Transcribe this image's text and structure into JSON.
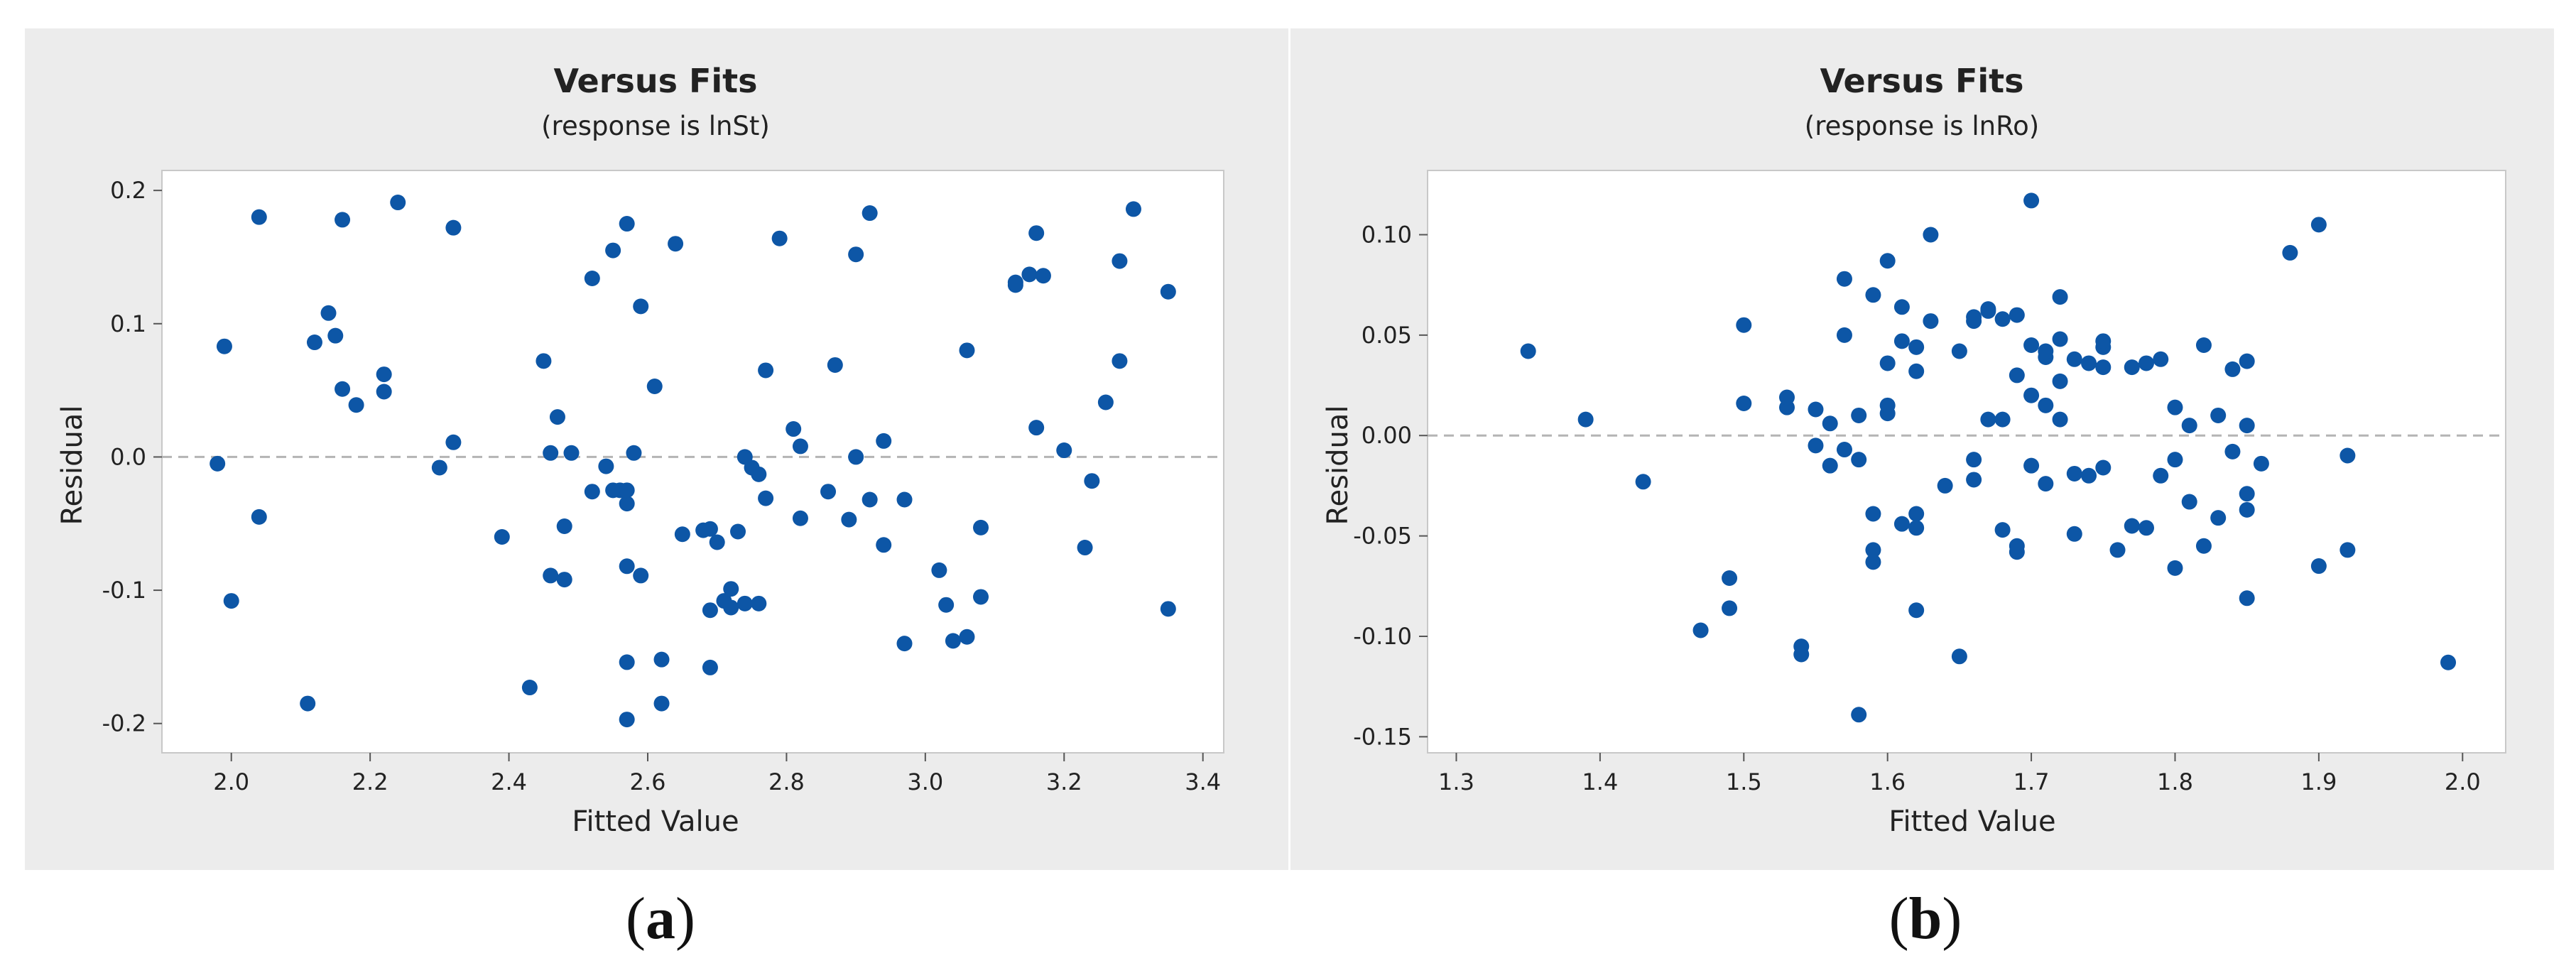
{
  "captions": {
    "a_letter": "a",
    "b_letter": "b"
  },
  "colors": {
    "point": "#0d56a6",
    "reference_line": "#b4b4b4",
    "panel_bg": "#ececec",
    "plot_bg": "#ffffff"
  },
  "chart_data": [
    {
      "type": "scatter",
      "title": "Versus Fits",
      "subtitle": "(response is lnSt)",
      "xlabel": "Fitted Value",
      "ylabel": "Residual",
      "xlim": [
        1.9,
        3.43
      ],
      "ylim": [
        -0.222,
        0.215
      ],
      "xticks": [
        2.0,
        2.2,
        2.4,
        2.6,
        2.8,
        3.0,
        3.2,
        3.4
      ],
      "xtick_labels": [
        "2.0",
        "2.2",
        "2.4",
        "2.6",
        "2.8",
        "3.0",
        "3.2",
        "3.4"
      ],
      "yticks": [
        -0.2,
        -0.1,
        0.0,
        0.1,
        0.2
      ],
      "ytick_labels": [
        "-0.2",
        "-0.1",
        "0.0",
        "0.1",
        "0.2"
      ],
      "reference_line_y": 0,
      "grid": false,
      "points": [
        [
          1.98,
          -0.005
        ],
        [
          1.99,
          0.083
        ],
        [
          2.0,
          -0.108
        ],
        [
          2.04,
          -0.045
        ],
        [
          2.04,
          0.18
        ],
        [
          2.11,
          -0.185
        ],
        [
          2.12,
          0.086
        ],
        [
          2.14,
          0.108
        ],
        [
          2.15,
          0.091
        ],
        [
          2.16,
          0.051
        ],
        [
          2.16,
          0.178
        ],
        [
          2.18,
          0.039
        ],
        [
          2.22,
          0.049
        ],
        [
          2.22,
          0.062
        ],
        [
          2.24,
          0.191
        ],
        [
          2.3,
          -0.008
        ],
        [
          2.32,
          0.172
        ],
        [
          2.32,
          0.011
        ],
        [
          2.39,
          -0.06
        ],
        [
          2.43,
          -0.173
        ],
        [
          2.45,
          0.072
        ],
        [
          2.46,
          -0.089
        ],
        [
          2.46,
          0.003
        ],
        [
          2.47,
          0.03
        ],
        [
          2.48,
          -0.092
        ],
        [
          2.48,
          -0.052
        ],
        [
          2.49,
          0.003
        ],
        [
          2.52,
          0.134
        ],
        [
          2.52,
          -0.026
        ],
        [
          2.54,
          -0.007
        ],
        [
          2.55,
          0.155
        ],
        [
          2.55,
          -0.025
        ],
        [
          2.56,
          -0.025
        ],
        [
          2.57,
          -0.035
        ],
        [
          2.57,
          -0.025
        ],
        [
          2.57,
          -0.154
        ],
        [
          2.57,
          -0.197
        ],
        [
          2.57,
          -0.082
        ],
        [
          2.57,
          0.175
        ],
        [
          2.58,
          0.003
        ],
        [
          2.59,
          0.113
        ],
        [
          2.59,
          -0.089
        ],
        [
          2.61,
          0.053
        ],
        [
          2.62,
          -0.152
        ],
        [
          2.62,
          -0.185
        ],
        [
          2.64,
          0.16
        ],
        [
          2.65,
          -0.058
        ],
        [
          2.68,
          -0.055
        ],
        [
          2.69,
          -0.054
        ],
        [
          2.69,
          -0.158
        ],
        [
          2.69,
          -0.115
        ],
        [
          2.7,
          -0.064
        ],
        [
          2.71,
          -0.108
        ],
        [
          2.72,
          -0.099
        ],
        [
          2.72,
          -0.113
        ],
        [
          2.73,
          -0.056
        ],
        [
          2.74,
          0.0
        ],
        [
          2.74,
          -0.11
        ],
        [
          2.75,
          -0.008
        ],
        [
          2.76,
          -0.013
        ],
        [
          2.76,
          -0.11
        ],
        [
          2.77,
          -0.031
        ],
        [
          2.77,
          0.065
        ],
        [
          2.79,
          0.164
        ],
        [
          2.81,
          0.021
        ],
        [
          2.82,
          0.008
        ],
        [
          2.82,
          -0.046
        ],
        [
          2.86,
          -0.026
        ],
        [
          2.87,
          0.069
        ],
        [
          2.89,
          -0.047
        ],
        [
          2.9,
          0.152
        ],
        [
          2.9,
          0.0
        ],
        [
          2.92,
          0.183
        ],
        [
          2.92,
          -0.032
        ],
        [
          2.94,
          0.012
        ],
        [
          2.94,
          -0.066
        ],
        [
          2.97,
          -0.14
        ],
        [
          2.97,
          -0.032
        ],
        [
          3.02,
          -0.085
        ],
        [
          3.03,
          -0.111
        ],
        [
          3.04,
          -0.138
        ],
        [
          3.06,
          0.08
        ],
        [
          3.06,
          -0.135
        ],
        [
          3.08,
          -0.053
        ],
        [
          3.08,
          -0.105
        ],
        [
          3.13,
          0.131
        ],
        [
          3.13,
          0.129
        ],
        [
          3.15,
          0.137
        ],
        [
          3.16,
          0.022
        ],
        [
          3.16,
          0.168
        ],
        [
          3.17,
          0.136
        ],
        [
          3.2,
          0.005
        ],
        [
          3.23,
          -0.068
        ],
        [
          3.24,
          -0.018
        ],
        [
          3.26,
          0.041
        ],
        [
          3.28,
          0.072
        ],
        [
          3.28,
          0.147
        ],
        [
          3.3,
          0.186
        ],
        [
          3.35,
          0.124
        ],
        [
          3.35,
          -0.114
        ]
      ]
    },
    {
      "type": "scatter",
      "title": "Versus Fits",
      "subtitle": "(response is lnRo)",
      "xlabel": "Fitted Value",
      "ylabel": "Residual",
      "xlim": [
        1.28,
        2.03
      ],
      "ylim": [
        -0.158,
        0.132
      ],
      "xticks": [
        1.3,
        1.4,
        1.5,
        1.6,
        1.7,
        1.8,
        1.9,
        2.0
      ],
      "xtick_labels": [
        "1.3",
        "1.4",
        "1.5",
        "1.6",
        "1.7",
        "1.8",
        "1.9",
        "2.0"
      ],
      "yticks": [
        -0.15,
        -0.1,
        -0.05,
        0.0,
        0.05,
        0.1
      ],
      "ytick_labels": [
        "-0.15",
        "-0.10",
        "-0.05",
        "0.00",
        "0.05",
        "0.10"
      ],
      "reference_line_y": 0,
      "grid": false,
      "points": [
        [
          1.35,
          0.042
        ],
        [
          1.39,
          0.008
        ],
        [
          1.43,
          -0.023
        ],
        [
          1.47,
          -0.097
        ],
        [
          1.49,
          -0.071
        ],
        [
          1.49,
          -0.086
        ],
        [
          1.5,
          0.055
        ],
        [
          1.5,
          0.016
        ],
        [
          1.53,
          0.014
        ],
        [
          1.53,
          0.019
        ],
        [
          1.54,
          -0.105
        ],
        [
          1.54,
          -0.109
        ],
        [
          1.55,
          0.013
        ],
        [
          1.55,
          -0.005
        ],
        [
          1.56,
          -0.015
        ],
        [
          1.56,
          0.006
        ],
        [
          1.57,
          0.05
        ],
        [
          1.57,
          -0.007
        ],
        [
          1.57,
          0.078
        ],
        [
          1.58,
          0.01
        ],
        [
          1.58,
          -0.012
        ],
        [
          1.58,
          -0.139
        ],
        [
          1.59,
          -0.057
        ],
        [
          1.59,
          -0.039
        ],
        [
          1.59,
          -0.063
        ],
        [
          1.59,
          0.07
        ],
        [
          1.6,
          0.036
        ],
        [
          1.6,
          0.011
        ],
        [
          1.6,
          0.015
        ],
        [
          1.6,
          0.087
        ],
        [
          1.61,
          0.064
        ],
        [
          1.61,
          -0.044
        ],
        [
          1.61,
          0.047
        ],
        [
          1.62,
          0.044
        ],
        [
          1.62,
          -0.039
        ],
        [
          1.62,
          -0.046
        ],
        [
          1.62,
          0.032
        ],
        [
          1.62,
          -0.087
        ],
        [
          1.63,
          0.057
        ],
        [
          1.63,
          0.1
        ],
        [
          1.64,
          -0.025
        ],
        [
          1.65,
          0.042
        ],
        [
          1.65,
          -0.11
        ],
        [
          1.66,
          -0.012
        ],
        [
          1.66,
          -0.022
        ],
        [
          1.66,
          0.057
        ],
        [
          1.66,
          0.059
        ],
        [
          1.67,
          0.063
        ],
        [
          1.67,
          0.062
        ],
        [
          1.67,
          0.008
        ],
        [
          1.68,
          0.008
        ],
        [
          1.68,
          0.058
        ],
        [
          1.68,
          -0.047
        ],
        [
          1.69,
          0.06
        ],
        [
          1.69,
          -0.058
        ],
        [
          1.69,
          0.03
        ],
        [
          1.69,
          -0.055
        ],
        [
          1.7,
          0.02
        ],
        [
          1.7,
          0.045
        ],
        [
          1.7,
          0.117
        ],
        [
          1.7,
          -0.015
        ],
        [
          1.71,
          0.039
        ],
        [
          1.71,
          -0.024
        ],
        [
          1.71,
          0.015
        ],
        [
          1.71,
          0.042
        ],
        [
          1.72,
          0.048
        ],
        [
          1.72,
          0.027
        ],
        [
          1.72,
          0.008
        ],
        [
          1.72,
          0.069
        ],
        [
          1.73,
          0.038
        ],
        [
          1.73,
          -0.019
        ],
        [
          1.73,
          -0.049
        ],
        [
          1.74,
          0.036
        ],
        [
          1.74,
          -0.02
        ],
        [
          1.75,
          -0.016
        ],
        [
          1.75,
          0.034
        ],
        [
          1.75,
          0.044
        ],
        [
          1.75,
          0.047
        ],
        [
          1.76,
          -0.057
        ],
        [
          1.77,
          -0.045
        ],
        [
          1.77,
          0.034
        ],
        [
          1.78,
          -0.046
        ],
        [
          1.78,
          0.036
        ],
        [
          1.79,
          0.038
        ],
        [
          1.79,
          -0.02
        ],
        [
          1.8,
          0.014
        ],
        [
          1.8,
          -0.012
        ],
        [
          1.8,
          -0.066
        ],
        [
          1.81,
          -0.033
        ],
        [
          1.81,
          0.005
        ],
        [
          1.82,
          0.045
        ],
        [
          1.82,
          -0.055
        ],
        [
          1.83,
          -0.041
        ],
        [
          1.83,
          0.01
        ],
        [
          1.84,
          0.033
        ],
        [
          1.84,
          -0.008
        ],
        [
          1.85,
          0.037
        ],
        [
          1.85,
          0.005
        ],
        [
          1.85,
          -0.029
        ],
        [
          1.85,
          -0.037
        ],
        [
          1.85,
          -0.081
        ],
        [
          1.86,
          -0.014
        ],
        [
          1.88,
          0.091
        ],
        [
          1.9,
          -0.065
        ],
        [
          1.9,
          0.105
        ],
        [
          1.92,
          -0.01
        ],
        [
          1.92,
          -0.057
        ],
        [
          1.99,
          -0.113
        ]
      ]
    }
  ]
}
